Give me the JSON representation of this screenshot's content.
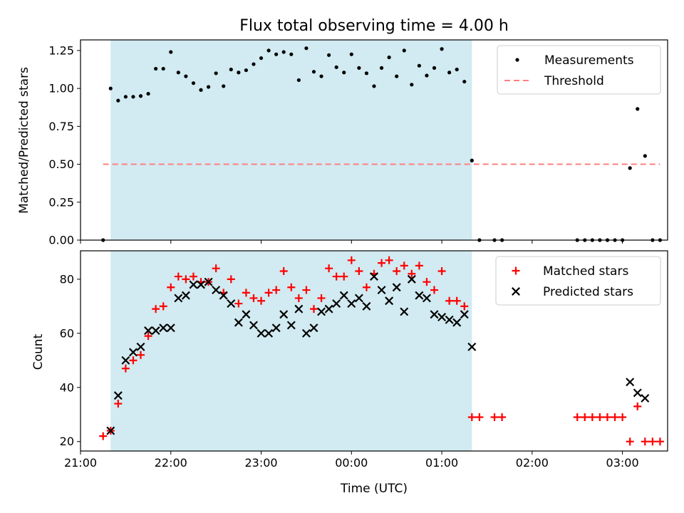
{
  "chart_data": [
    {
      "type": "scatter",
      "title": "Flux total observing time = 4.00 h",
      "ylabel": "Matched/Predicted stars",
      "xlabel": "",
      "xlim": [
        "21:00",
        "03:30"
      ],
      "ylim": [
        0.0,
        1.32
      ],
      "yticks": [
        "0.00",
        "0.25",
        "0.50",
        "0.75",
        "1.00",
        "1.25"
      ],
      "highlight_span": {
        "start": "21:20",
        "end": "01:20",
        "color": "#add8e6"
      },
      "legend": {
        "position": "top-right",
        "entries": [
          "Measurements",
          "Threshold"
        ]
      },
      "threshold": {
        "name": "Threshold",
        "y": 0.5,
        "x": [
          "21:15",
          "03:25"
        ],
        "color": "#ff7f7f"
      },
      "series": [
        {
          "name": "Measurements",
          "color": "#000000",
          "marker": "dot",
          "points": [
            [
              "21:15",
              0.0
            ],
            [
              "21:20",
              1.0
            ],
            [
              "21:25",
              0.92
            ],
            [
              "21:30",
              0.945
            ],
            [
              "21:35",
              0.945
            ],
            [
              "21:40",
              0.95
            ],
            [
              "21:45",
              0.965
            ],
            [
              "21:50",
              1.13
            ],
            [
              "21:55",
              1.13
            ],
            [
              "22:00",
              1.24
            ],
            [
              "22:05",
              1.105
            ],
            [
              "22:10",
              1.08
            ],
            [
              "22:15",
              1.035
            ],
            [
              "22:20",
              0.99
            ],
            [
              "22:25",
              1.01
            ],
            [
              "22:30",
              1.1
            ],
            [
              "22:35",
              1.015
            ],
            [
              "22:40",
              1.125
            ],
            [
              "22:45",
              1.105
            ],
            [
              "22:50",
              1.12
            ],
            [
              "22:55",
              1.16
            ],
            [
              "23:00",
              1.2
            ],
            [
              "23:05",
              1.25
            ],
            [
              "23:10",
              1.225
            ],
            [
              "23:15",
              1.24
            ],
            [
              "23:20",
              1.225
            ],
            [
              "23:25",
              1.055
            ],
            [
              "23:30",
              1.265
            ],
            [
              "23:35",
              1.11
            ],
            [
              "23:40",
              1.08
            ],
            [
              "23:45",
              1.22
            ],
            [
              "23:50",
              1.14
            ],
            [
              "23:55",
              1.105
            ],
            [
              "00:00",
              1.225
            ],
            [
              "00:05",
              1.135
            ],
            [
              "00:10",
              1.1
            ],
            [
              "00:15",
              1.015
            ],
            [
              "00:20",
              1.135
            ],
            [
              "00:25",
              1.205
            ],
            [
              "00:30",
              1.08
            ],
            [
              "00:35",
              1.25
            ],
            [
              "00:40",
              1.025
            ],
            [
              "00:45",
              1.15
            ],
            [
              "00:50",
              1.085
            ],
            [
              "00:55",
              1.135
            ],
            [
              "01:00",
              1.26
            ],
            [
              "01:05",
              1.105
            ],
            [
              "01:10",
              1.125
            ],
            [
              "01:15",
              1.045
            ],
            [
              "01:20",
              0.525
            ],
            [
              "01:25",
              0.0
            ],
            [
              "01:35",
              0.0
            ],
            [
              "01:40",
              0.0
            ],
            [
              "02:30",
              0.0
            ],
            [
              "02:35",
              0.0
            ],
            [
              "02:40",
              0.0
            ],
            [
              "02:45",
              0.0
            ],
            [
              "02:50",
              0.0
            ],
            [
              "02:55",
              0.0
            ],
            [
              "03:00",
              0.0
            ],
            [
              "03:05",
              0.475
            ],
            [
              "03:10",
              0.865
            ],
            [
              "03:15",
              0.555
            ],
            [
              "03:20",
              0.0
            ],
            [
              "03:25",
              0.0
            ]
          ]
        }
      ]
    },
    {
      "type": "scatter",
      "title": "",
      "ylabel": "Count",
      "xlabel": "Time (UTC)",
      "xlim": [
        "21:00",
        "03:30"
      ],
      "ylim": [
        16.5,
        90.5
      ],
      "yticks": [
        "20",
        "40",
        "60",
        "80"
      ],
      "xticks": [
        "21:00",
        "22:00",
        "23:00",
        "00:00",
        "01:00",
        "02:00",
        "03:00"
      ],
      "highlight_span": {
        "start": "21:20",
        "end": "01:20",
        "color": "#add8e6"
      },
      "legend": {
        "position": "top-right",
        "entries": [
          "Matched stars",
          "Predicted stars"
        ]
      },
      "series": [
        {
          "name": "Matched stars",
          "color": "#ff0000",
          "marker": "plus",
          "points": [
            [
              "21:15",
              22
            ],
            [
              "21:20",
              24
            ],
            [
              "21:25",
              34
            ],
            [
              "21:30",
              47
            ],
            [
              "21:35",
              50
            ],
            [
              "21:40",
              52
            ],
            [
              "21:45",
              59
            ],
            [
              "21:50",
              69
            ],
            [
              "21:55",
              70
            ],
            [
              "22:00",
              77
            ],
            [
              "22:05",
              81
            ],
            [
              "22:10",
              80
            ],
            [
              "22:15",
              81
            ],
            [
              "22:20",
              79
            ],
            [
              "22:25",
              79
            ],
            [
              "22:30",
              84
            ],
            [
              "22:35",
              75
            ],
            [
              "22:40",
              80
            ],
            [
              "22:45",
              71
            ],
            [
              "22:50",
              75
            ],
            [
              "22:55",
              73
            ],
            [
              "23:00",
              72
            ],
            [
              "23:05",
              75
            ],
            [
              "23:10",
              76
            ],
            [
              "23:15",
              83
            ],
            [
              "23:20",
              77
            ],
            [
              "23:25",
              73
            ],
            [
              "23:30",
              76
            ],
            [
              "23:35",
              69
            ],
            [
              "23:40",
              73
            ],
            [
              "23:45",
              84
            ],
            [
              "23:50",
              81
            ],
            [
              "23:55",
              81
            ],
            [
              "00:00",
              87
            ],
            [
              "00:05",
              83
            ],
            [
              "00:10",
              77
            ],
            [
              "00:15",
              82
            ],
            [
              "00:20",
              86
            ],
            [
              "00:25",
              87
            ],
            [
              "00:30",
              83
            ],
            [
              "00:35",
              85
            ],
            [
              "00:40",
              82
            ],
            [
              "00:45",
              85
            ],
            [
              "00:50",
              79
            ],
            [
              "00:55",
              76
            ],
            [
              "01:00",
              83
            ],
            [
              "01:05",
              72
            ],
            [
              "01:10",
              72
            ],
            [
              "01:15",
              70
            ],
            [
              "01:20",
              29
            ],
            [
              "01:25",
              29
            ],
            [
              "01:35",
              29
            ],
            [
              "01:40",
              29
            ],
            [
              "02:30",
              29
            ],
            [
              "02:35",
              29
            ],
            [
              "02:40",
              29
            ],
            [
              "02:45",
              29
            ],
            [
              "02:50",
              29
            ],
            [
              "02:55",
              29
            ],
            [
              "03:00",
              29
            ],
            [
              "03:05",
              20
            ],
            [
              "03:10",
              33
            ],
            [
              "03:15",
              20
            ],
            [
              "03:20",
              20
            ],
            [
              "03:25",
              20
            ]
          ]
        },
        {
          "name": "Predicted stars",
          "color": "#000000",
          "marker": "x",
          "points": [
            [
              "21:20",
              24
            ],
            [
              "21:25",
              37
            ],
            [
              "21:30",
              50
            ],
            [
              "21:35",
              53
            ],
            [
              "21:40",
              55
            ],
            [
              "21:45",
              61
            ],
            [
              "21:50",
              61
            ],
            [
              "21:55",
              62
            ],
            [
              "22:00",
              62
            ],
            [
              "22:05",
              73
            ],
            [
              "22:10",
              74
            ],
            [
              "22:15",
              78
            ],
            [
              "22:20",
              78
            ],
            [
              "22:25",
              79
            ],
            [
              "22:30",
              76
            ],
            [
              "22:35",
              74
            ],
            [
              "22:40",
              71
            ],
            [
              "22:45",
              64
            ],
            [
              "22:50",
              67
            ],
            [
              "22:55",
              63
            ],
            [
              "23:00",
              60
            ],
            [
              "23:05",
              60
            ],
            [
              "23:10",
              62
            ],
            [
              "23:15",
              67
            ],
            [
              "23:20",
              63
            ],
            [
              "23:25",
              69
            ],
            [
              "23:30",
              60
            ],
            [
              "23:35",
              62
            ],
            [
              "23:40",
              68
            ],
            [
              "23:45",
              69
            ],
            [
              "23:50",
              71
            ],
            [
              "23:55",
              74
            ],
            [
              "00:00",
              71
            ],
            [
              "00:05",
              73
            ],
            [
              "00:10",
              70
            ],
            [
              "00:15",
              81
            ],
            [
              "00:20",
              76
            ],
            [
              "00:25",
              72
            ],
            [
              "00:30",
              77
            ],
            [
              "00:35",
              68
            ],
            [
              "00:40",
              80
            ],
            [
              "00:45",
              74
            ],
            [
              "00:50",
              73
            ],
            [
              "00:55",
              67
            ],
            [
              "01:00",
              66
            ],
            [
              "01:05",
              65
            ],
            [
              "01:10",
              64
            ],
            [
              "01:15",
              67
            ],
            [
              "01:20",
              55
            ],
            [
              "03:05",
              42
            ],
            [
              "03:10",
              38
            ],
            [
              "03:15",
              36
            ]
          ]
        }
      ]
    }
  ]
}
